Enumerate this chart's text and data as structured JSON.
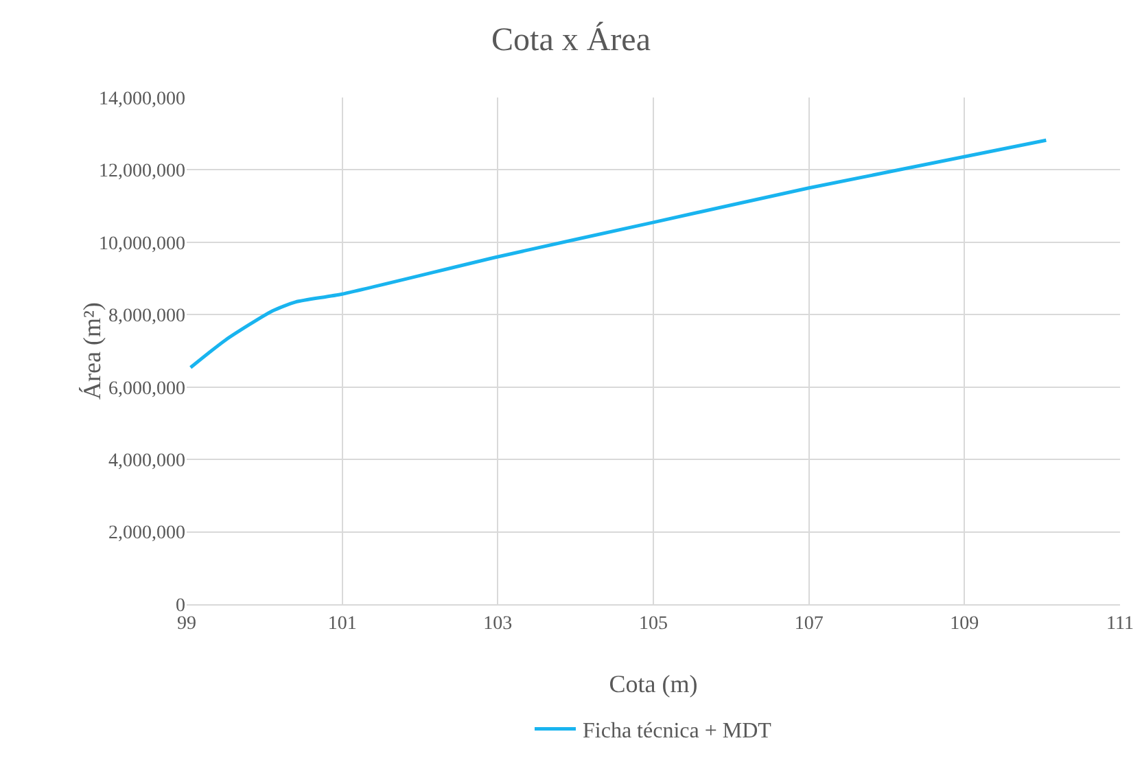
{
  "chart_data": {
    "type": "line",
    "title": "Cota x Área",
    "xlabel": "Cota (m)",
    "ylabel": "Área (m²)",
    "x": [
      99.05,
      99.5,
      100.1,
      100.4,
      101,
      103,
      105,
      107,
      110.05
    ],
    "series": [
      {
        "name": "Ficha técnica + MDT",
        "color": "#19b4ef",
        "values": [
          6540000,
          7300000,
          8100000,
          8350000,
          8570000,
          9600000,
          10550000,
          11500000,
          12820000
        ]
      }
    ],
    "xlim": [
      99,
      111
    ],
    "xticks": [
      99,
      101,
      103,
      105,
      107,
      109,
      111
    ],
    "ylim": [
      0,
      14000000
    ],
    "yticks": [
      {
        "value": 0,
        "label": "0"
      },
      {
        "value": 2000000,
        "label": "2,000,000"
      },
      {
        "value": 4000000,
        "label": "4,000,000"
      },
      {
        "value": 6000000,
        "label": "6,000,000"
      },
      {
        "value": 8000000,
        "label": "8,000,000"
      },
      {
        "value": 10000000,
        "label": "10,000,000"
      },
      {
        "value": 12000000,
        "label": "12,000,000"
      },
      {
        "value": 14000000,
        "label": "14,000,000"
      }
    ],
    "grid": true,
    "legend": "bottom",
    "marker": "none",
    "line_style": "solid"
  }
}
